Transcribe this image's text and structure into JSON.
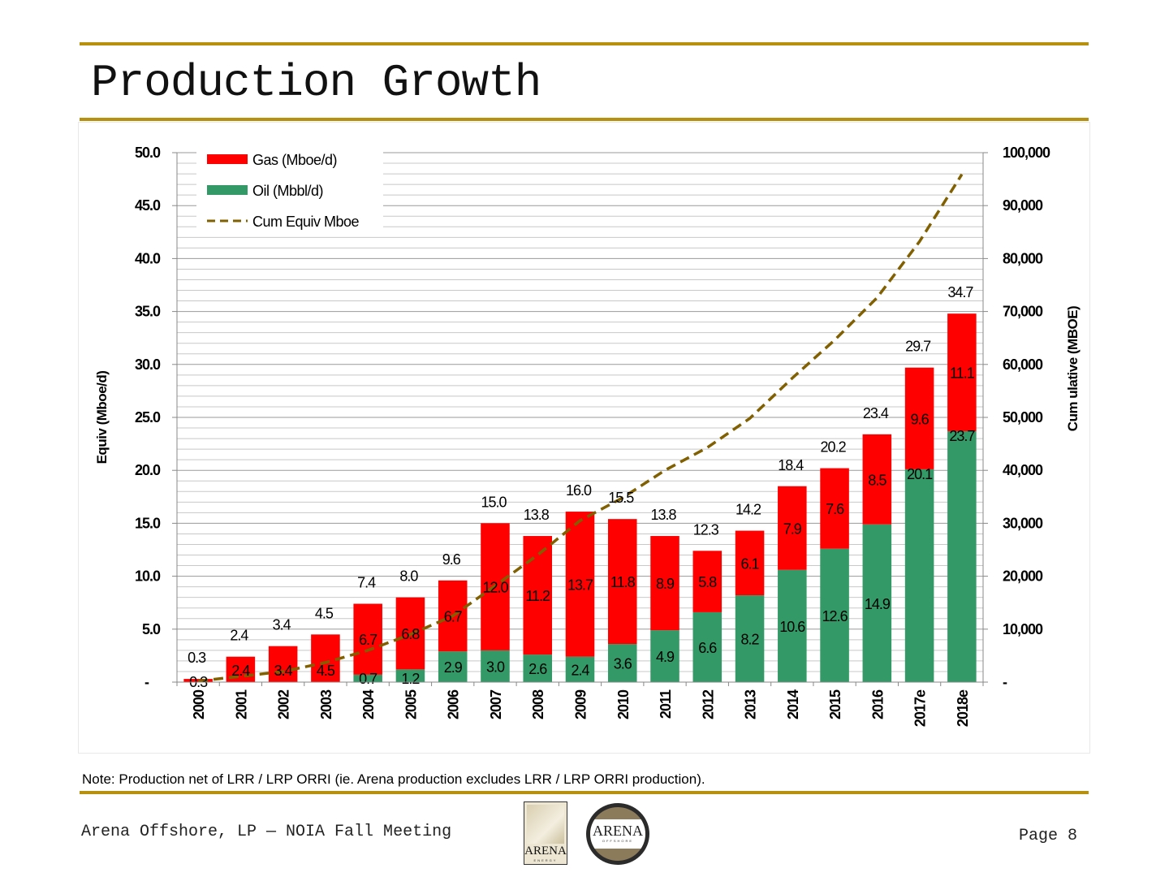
{
  "slide": {
    "title": "Production Growth",
    "note": "Note: Production net of LRR / LRP ORRI (ie. Arena production excludes LRR / LRP ORRI production).",
    "footer": "Arena Offshore, LP — NOIA Fall Meeting",
    "page": "Page 8",
    "logos": {
      "left": {
        "text": "ARENA",
        "subtext": "ENERGY"
      },
      "right": {
        "text": "ARENA",
        "subtext": "OFFSHORE"
      }
    },
    "colors": {
      "rule": "#b8900f",
      "gas": "#ff0000",
      "oil": "#339966",
      "cum": "#806000"
    }
  },
  "chart_data": {
    "type": "bar",
    "stacked": true,
    "title": "",
    "categories": [
      "2000",
      "2001",
      "2002",
      "2003",
      "2004",
      "2005",
      "2006",
      "2007",
      "2008",
      "2009",
      "2010",
      "2011",
      "2012",
      "2013",
      "2014",
      "2015",
      "2016",
      "2017e",
      "2018e"
    ],
    "series": [
      {
        "name": "Oil (Mbbl/d)",
        "type": "bar",
        "axis": "left",
        "color": "#339966",
        "values": [
          0.0,
          0.0,
          0.0,
          0.0,
          0.7,
          1.2,
          2.9,
          3.0,
          2.6,
          2.4,
          3.6,
          4.9,
          6.6,
          8.2,
          10.6,
          12.6,
          14.9,
          20.1,
          23.7
        ]
      },
      {
        "name": "Gas (Mboe/d)",
        "type": "bar",
        "axis": "left",
        "color": "#ff0000",
        "values": [
          0.3,
          2.4,
          3.4,
          4.5,
          6.7,
          6.8,
          6.7,
          12.0,
          11.2,
          13.7,
          11.8,
          8.9,
          5.8,
          6.1,
          7.9,
          7.6,
          8.5,
          9.6,
          11.1
        ]
      },
      {
        "name": "Cum Equiv Mboe",
        "type": "line",
        "axis": "right",
        "color": "#806000",
        "dashed": true,
        "values": [
          200,
          1100,
          2000,
          3700,
          6000,
          9000,
          12500,
          18200,
          24000,
          30500,
          34800,
          40000,
          44300,
          49800,
          57400,
          64600,
          72600,
          83200,
          95900
        ]
      }
    ],
    "totals": [
      0.3,
      2.4,
      3.4,
      4.5,
      7.4,
      8.0,
      9.6,
      15.0,
      13.8,
      16.0,
      15.5,
      13.8,
      12.3,
      14.2,
      18.4,
      20.2,
      23.4,
      29.7,
      34.7
    ],
    "oil_labels": [
      "0.3",
      "2.4",
      "3.4",
      "4.5",
      "0.7",
      "1.2",
      "2.9",
      "3.0",
      "2.6",
      "2.4",
      "3.6",
      "4.9",
      "6.6",
      "8.2",
      "10.6",
      "12.6",
      "14.9",
      "20.1",
      "23.7"
    ],
    "oil_label_shown": [
      false,
      false,
      false,
      false,
      true,
      true,
      true,
      true,
      true,
      true,
      true,
      true,
      true,
      true,
      true,
      true,
      true,
      true,
      true
    ],
    "gas_labels": [
      "0.3",
      "2.4",
      "3.4",
      "4.5",
      "6.7",
      "6.8",
      "6.7",
      "12.0",
      "11.2",
      "13.7",
      "11.8",
      "8.9",
      "5.8",
      "6.1",
      "7.9",
      "7.6",
      "8.5",
      "9.6",
      "11.1"
    ],
    "total_labels": [
      "0.3",
      "2.4",
      "3.4",
      "4.5",
      "7.4",
      "8.0",
      "9.6",
      "15.0",
      "13.8",
      "16.0",
      "15.5",
      "13.8",
      "12.3",
      "14.2",
      "18.4",
      "20.2",
      "23.4",
      "29.7",
      "34.7"
    ],
    "ylabel": "Equiv (Mboe/d)",
    "y2label": "Cum ulative (MBOE)",
    "ylim": [
      0,
      50
    ],
    "y2lim": [
      0,
      100000
    ],
    "yticks": [
      "-",
      "5.0",
      "10.0",
      "15.0",
      "20.0",
      "25.0",
      "30.0",
      "35.0",
      "40.0",
      "45.0",
      "50.0"
    ],
    "y2ticks": [
      "-",
      "10,000",
      "20,000",
      "30,000",
      "40,000",
      "50,000",
      "60,000",
      "70,000",
      "80,000",
      "90,000",
      "100,000"
    ],
    "grid": true,
    "legend": {
      "position": "top-left",
      "entries": [
        "Gas (Mboe/d)",
        "Oil (Mbbl/d)",
        "Cum Equiv Mboe"
      ]
    }
  }
}
